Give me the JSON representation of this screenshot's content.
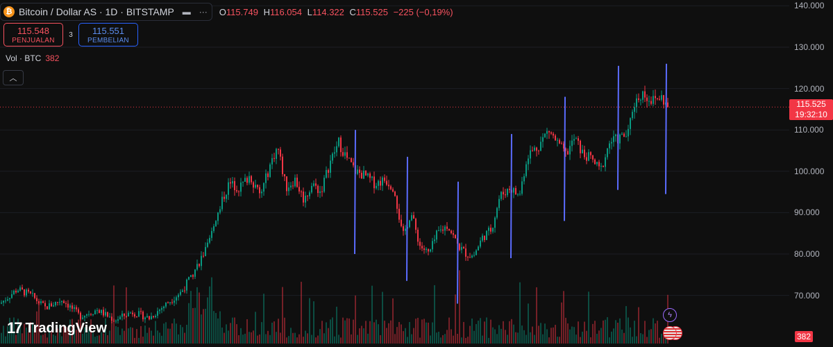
{
  "header": {
    "symbol": "Bitcoin / Dollar AS · 1D · BITSTAMP",
    "icon_letter": "₿",
    "ohlc": {
      "o_label": "O",
      "o": "115.749",
      "h_label": "H",
      "h": "116.054",
      "l_label": "L",
      "l": "114.322",
      "c_label": "C",
      "c": "115.525",
      "change": "−225 (−0,19%)"
    }
  },
  "trade": {
    "sell_price": "115.548",
    "sell_label": "PENJUALAN",
    "spread": "3",
    "buy_price": "115.551",
    "buy_label": "PEMBELIAN"
  },
  "volume": {
    "label": "Vol · BTC",
    "value": "382"
  },
  "last_price": {
    "value": "115.525",
    "countdown": "19:32:10"
  },
  "logo": {
    "text": "TradingView"
  },
  "colors": {
    "up": "#089981",
    "down": "#f23645",
    "marker": "#5b6cff",
    "background": "#0f0f0f"
  },
  "chart_data": {
    "type": "candlestick",
    "y_axis": {
      "ticks": [
        "140.000",
        "130.000",
        "120.000",
        "110.000",
        "100.000",
        "90.000",
        "80.000",
        "70.000"
      ],
      "range": [
        63000,
        140500
      ]
    },
    "close_path": [
      [
        0,
        68000
      ],
      [
        25,
        71500
      ],
      [
        45,
        70000
      ],
      [
        65,
        67000
      ],
      [
        90,
        69000
      ],
      [
        115,
        65000
      ],
      [
        140,
        66500
      ],
      [
        165,
        64000
      ],
      [
        190,
        66000
      ],
      [
        215,
        64500
      ],
      [
        240,
        68000
      ],
      [
        262,
        71000
      ],
      [
        280,
        76000
      ],
      [
        300,
        82000
      ],
      [
        315,
        91000
      ],
      [
        330,
        97000
      ],
      [
        345,
        96000
      ],
      [
        360,
        99000
      ],
      [
        375,
        94000
      ],
      [
        390,
        102000
      ],
      [
        400,
        106000
      ],
      [
        412,
        96000
      ],
      [
        425,
        98000
      ],
      [
        438,
        93000
      ],
      [
        450,
        97000
      ],
      [
        462,
        95000
      ],
      [
        475,
        102000
      ],
      [
        488,
        107000
      ],
      [
        500,
        103000
      ],
      [
        512,
        100000
      ],
      [
        525,
        99000
      ],
      [
        540,
        97000
      ],
      [
        555,
        98000
      ],
      [
        568,
        96000
      ],
      [
        580,
        84000
      ],
      [
        592,
        90000
      ],
      [
        605,
        82000
      ],
      [
        618,
        80000
      ],
      [
        630,
        85000
      ],
      [
        645,
        87000
      ],
      [
        660,
        82000
      ],
      [
        672,
        80000
      ],
      [
        682,
        79500
      ],
      [
        695,
        84000
      ],
      [
        708,
        86000
      ],
      [
        720,
        94000
      ],
      [
        735,
        96000
      ],
      [
        748,
        94000
      ],
      [
        760,
        104000
      ],
      [
        775,
        106000
      ],
      [
        790,
        110000
      ],
      [
        802,
        107000
      ],
      [
        815,
        104000
      ],
      [
        828,
        108000
      ],
      [
        840,
        104000
      ],
      [
        852,
        103000
      ],
      [
        865,
        100000
      ],
      [
        878,
        107000
      ],
      [
        892,
        108000
      ],
      [
        905,
        109000
      ],
      [
        912,
        116000
      ],
      [
        925,
        119000
      ],
      [
        940,
        117000
      ],
      [
        952,
        118000
      ],
      [
        962,
        115525
      ]
    ],
    "vertical_markers": [
      [
        512,
        110000,
        80000
      ],
      [
        587,
        103500,
        73500
      ],
      [
        660,
        97500,
        68000
      ],
      [
        737,
        109000,
        79000
      ],
      [
        814,
        118000,
        88000
      ],
      [
        891,
        125500,
        95500
      ],
      [
        960,
        126000,
        94500
      ]
    ],
    "last_value": 115525,
    "volume_panel": {
      "label": "Vol · BTC",
      "last": 382
    }
  }
}
